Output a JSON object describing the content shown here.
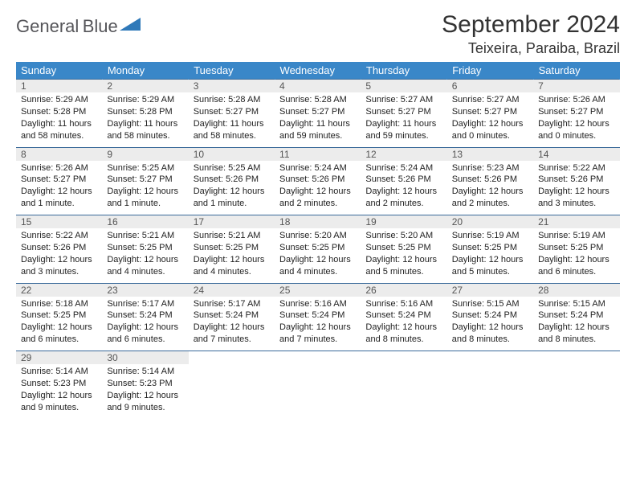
{
  "brand": {
    "name1": "General",
    "name2": "Blue"
  },
  "title": "September 2024",
  "location": "Teixeira, Paraiba, Brazil",
  "colors": {
    "header_bg": "#3a87c8",
    "header_text": "#ffffff",
    "daynum_bg": "#ececec",
    "border": "#3a6a9a",
    "brand_gray": "#555559",
    "brand_blue": "#2f79b9"
  },
  "day_headers": [
    "Sunday",
    "Monday",
    "Tuesday",
    "Wednesday",
    "Thursday",
    "Friday",
    "Saturday"
  ],
  "weeks": [
    [
      {
        "n": "1",
        "sr": "5:29 AM",
        "ss": "5:28 PM",
        "dl": "11 hours and 58 minutes."
      },
      {
        "n": "2",
        "sr": "5:29 AM",
        "ss": "5:28 PM",
        "dl": "11 hours and 58 minutes."
      },
      {
        "n": "3",
        "sr": "5:28 AM",
        "ss": "5:27 PM",
        "dl": "11 hours and 58 minutes."
      },
      {
        "n": "4",
        "sr": "5:28 AM",
        "ss": "5:27 PM",
        "dl": "11 hours and 59 minutes."
      },
      {
        "n": "5",
        "sr": "5:27 AM",
        "ss": "5:27 PM",
        "dl": "11 hours and 59 minutes."
      },
      {
        "n": "6",
        "sr": "5:27 AM",
        "ss": "5:27 PM",
        "dl": "12 hours and 0 minutes."
      },
      {
        "n": "7",
        "sr": "5:26 AM",
        "ss": "5:27 PM",
        "dl": "12 hours and 0 minutes."
      }
    ],
    [
      {
        "n": "8",
        "sr": "5:26 AM",
        "ss": "5:27 PM",
        "dl": "12 hours and 1 minute."
      },
      {
        "n": "9",
        "sr": "5:25 AM",
        "ss": "5:27 PM",
        "dl": "12 hours and 1 minute."
      },
      {
        "n": "10",
        "sr": "5:25 AM",
        "ss": "5:26 PM",
        "dl": "12 hours and 1 minute."
      },
      {
        "n": "11",
        "sr": "5:24 AM",
        "ss": "5:26 PM",
        "dl": "12 hours and 2 minutes."
      },
      {
        "n": "12",
        "sr": "5:24 AM",
        "ss": "5:26 PM",
        "dl": "12 hours and 2 minutes."
      },
      {
        "n": "13",
        "sr": "5:23 AM",
        "ss": "5:26 PM",
        "dl": "12 hours and 2 minutes."
      },
      {
        "n": "14",
        "sr": "5:22 AM",
        "ss": "5:26 PM",
        "dl": "12 hours and 3 minutes."
      }
    ],
    [
      {
        "n": "15",
        "sr": "5:22 AM",
        "ss": "5:26 PM",
        "dl": "12 hours and 3 minutes."
      },
      {
        "n": "16",
        "sr": "5:21 AM",
        "ss": "5:25 PM",
        "dl": "12 hours and 4 minutes."
      },
      {
        "n": "17",
        "sr": "5:21 AM",
        "ss": "5:25 PM",
        "dl": "12 hours and 4 minutes."
      },
      {
        "n": "18",
        "sr": "5:20 AM",
        "ss": "5:25 PM",
        "dl": "12 hours and 4 minutes."
      },
      {
        "n": "19",
        "sr": "5:20 AM",
        "ss": "5:25 PM",
        "dl": "12 hours and 5 minutes."
      },
      {
        "n": "20",
        "sr": "5:19 AM",
        "ss": "5:25 PM",
        "dl": "12 hours and 5 minutes."
      },
      {
        "n": "21",
        "sr": "5:19 AM",
        "ss": "5:25 PM",
        "dl": "12 hours and 6 minutes."
      }
    ],
    [
      {
        "n": "22",
        "sr": "5:18 AM",
        "ss": "5:25 PM",
        "dl": "12 hours and 6 minutes."
      },
      {
        "n": "23",
        "sr": "5:17 AM",
        "ss": "5:24 PM",
        "dl": "12 hours and 6 minutes."
      },
      {
        "n": "24",
        "sr": "5:17 AM",
        "ss": "5:24 PM",
        "dl": "12 hours and 7 minutes."
      },
      {
        "n": "25",
        "sr": "5:16 AM",
        "ss": "5:24 PM",
        "dl": "12 hours and 7 minutes."
      },
      {
        "n": "26",
        "sr": "5:16 AM",
        "ss": "5:24 PM",
        "dl": "12 hours and 8 minutes."
      },
      {
        "n": "27",
        "sr": "5:15 AM",
        "ss": "5:24 PM",
        "dl": "12 hours and 8 minutes."
      },
      {
        "n": "28",
        "sr": "5:15 AM",
        "ss": "5:24 PM",
        "dl": "12 hours and 8 minutes."
      }
    ],
    [
      {
        "n": "29",
        "sr": "5:14 AM",
        "ss": "5:23 PM",
        "dl": "12 hours and 9 minutes."
      },
      {
        "n": "30",
        "sr": "5:14 AM",
        "ss": "5:23 PM",
        "dl": "12 hours and 9 minutes."
      },
      null,
      null,
      null,
      null,
      null
    ]
  ],
  "labels": {
    "sunrise": "Sunrise:",
    "sunset": "Sunset:",
    "daylight": "Daylight:"
  }
}
